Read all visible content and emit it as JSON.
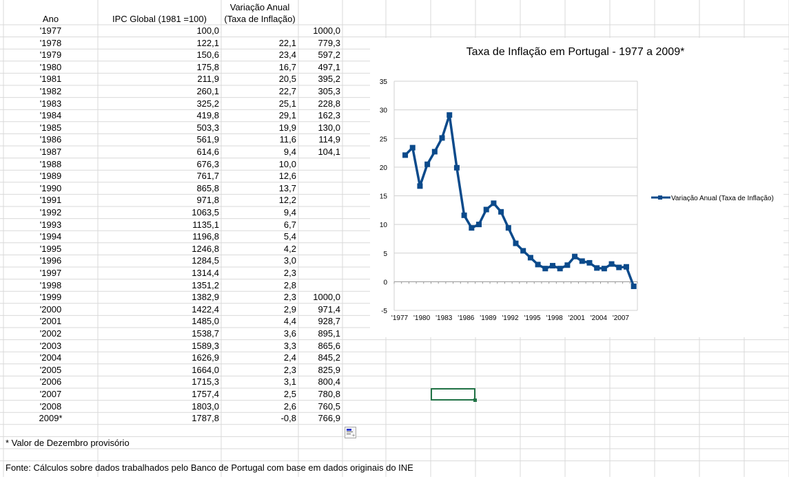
{
  "headers": {
    "ano": "Ano",
    "ipc": "IPC Global (1981 =100)",
    "var1": "Variação Anual",
    "var2": "(Taxa de Inflação)"
  },
  "rows": [
    [
      "'1977",
      "100,0",
      "",
      "1000,0"
    ],
    [
      "'1978",
      "122,1",
      "22,1",
      "779,3"
    ],
    [
      "'1979",
      "150,6",
      "23,4",
      "597,2"
    ],
    [
      "'1980",
      "175,8",
      "16,7",
      "497,1"
    ],
    [
      "'1981",
      "211,9",
      "20,5",
      "395,2"
    ],
    [
      "'1982",
      "260,1",
      "22,7",
      "305,3"
    ],
    [
      "'1983",
      "325,2",
      "25,1",
      "228,8"
    ],
    [
      "'1984",
      "419,8",
      "29,1",
      "162,3"
    ],
    [
      "'1985",
      "503,3",
      "19,9",
      "130,0"
    ],
    [
      "'1986",
      "561,9",
      "11,6",
      "114,9"
    ],
    [
      "'1987",
      "614,6",
      "9,4",
      "104,1"
    ],
    [
      "'1988",
      "676,3",
      "10,0",
      ""
    ],
    [
      "'1989",
      "761,7",
      "12,6",
      ""
    ],
    [
      "'1990",
      "865,8",
      "13,7",
      ""
    ],
    [
      "'1991",
      "971,8",
      "12,2",
      ""
    ],
    [
      "'1992",
      "1063,5",
      "9,4",
      ""
    ],
    [
      "'1993",
      "1135,1",
      "6,7",
      ""
    ],
    [
      "'1994",
      "1196,8",
      "5,4",
      ""
    ],
    [
      "'1995",
      "1246,8",
      "4,2",
      ""
    ],
    [
      "'1996",
      "1284,5",
      "3,0",
      ""
    ],
    [
      "'1997",
      "1314,4",
      "2,3",
      ""
    ],
    [
      "'1998",
      "1351,2",
      "2,8",
      ""
    ],
    [
      "'1999",
      "1382,9",
      "2,3",
      "1000,0"
    ],
    [
      "'2000",
      "1422,4",
      "2,9",
      "971,4"
    ],
    [
      "'2001",
      "1485,0",
      "4,4",
      "928,7"
    ],
    [
      "'2002",
      "1538,7",
      "3,6",
      "895,1"
    ],
    [
      "'2003",
      "1589,3",
      "3,3",
      "865,6"
    ],
    [
      "'2004",
      "1626,9",
      "2,4",
      "845,2"
    ],
    [
      "'2005",
      "1664,0",
      "2,3",
      "825,9"
    ],
    [
      "'2006",
      "1715,3",
      "3,1",
      "800,4"
    ],
    [
      "'2007",
      "1757,4",
      "2,5",
      "780,8"
    ],
    [
      "'2008",
      "1803,0",
      "2,6",
      "760,5"
    ],
    [
      "2009*",
      "1787,8",
      "-0,8",
      "766,9"
    ]
  ],
  "footnote": "* Valor de Dezembro provisório",
  "source": "Fonte: Cálculos sobre dados trabalhados pelo Banco de Portugal com base em dados originais do INE",
  "chart_data": {
    "type": "line",
    "title": "Taxa de Inflação em Portugal - 1977 a 2009*",
    "categories": [
      "'1977",
      "'1978",
      "'1979",
      "'1980",
      "'1981",
      "'1982",
      "'1983",
      "'1984",
      "'1985",
      "'1986",
      "'1987",
      "'1988",
      "'1989",
      "'1990",
      "'1991",
      "'1992",
      "'1993",
      "'1994",
      "'1995",
      "'1996",
      "'1997",
      "'1998",
      "'1999",
      "'2000",
      "'2001",
      "'2002",
      "'2003",
      "'2004",
      "'2005",
      "'2006",
      "'2007",
      "'2008",
      "2009*"
    ],
    "tick_labels": [
      "'1977",
      "'1980",
      "'1983",
      "'1986",
      "'1989",
      "'1992",
      "'1995",
      "'1998",
      "'2001",
      "'2004",
      "'2007"
    ],
    "series": [
      {
        "name": "Variação Anual (Taxa de Inflação)",
        "color": "#0b4a8b",
        "values": [
          null,
          22.1,
          23.4,
          16.7,
          20.5,
          22.7,
          25.1,
          29.1,
          19.9,
          11.6,
          9.4,
          10.0,
          12.6,
          13.7,
          12.2,
          9.4,
          6.7,
          5.4,
          4.2,
          3.0,
          2.3,
          2.8,
          2.3,
          2.9,
          4.4,
          3.6,
          3.3,
          2.4,
          2.3,
          3.1,
          2.5,
          2.6,
          -0.8
        ]
      }
    ],
    "ylim": [
      -5,
      35
    ],
    "yticks": [
      35,
      30,
      25,
      20,
      15,
      10,
      5,
      0,
      -5
    ],
    "grid": true,
    "legend": "right"
  }
}
